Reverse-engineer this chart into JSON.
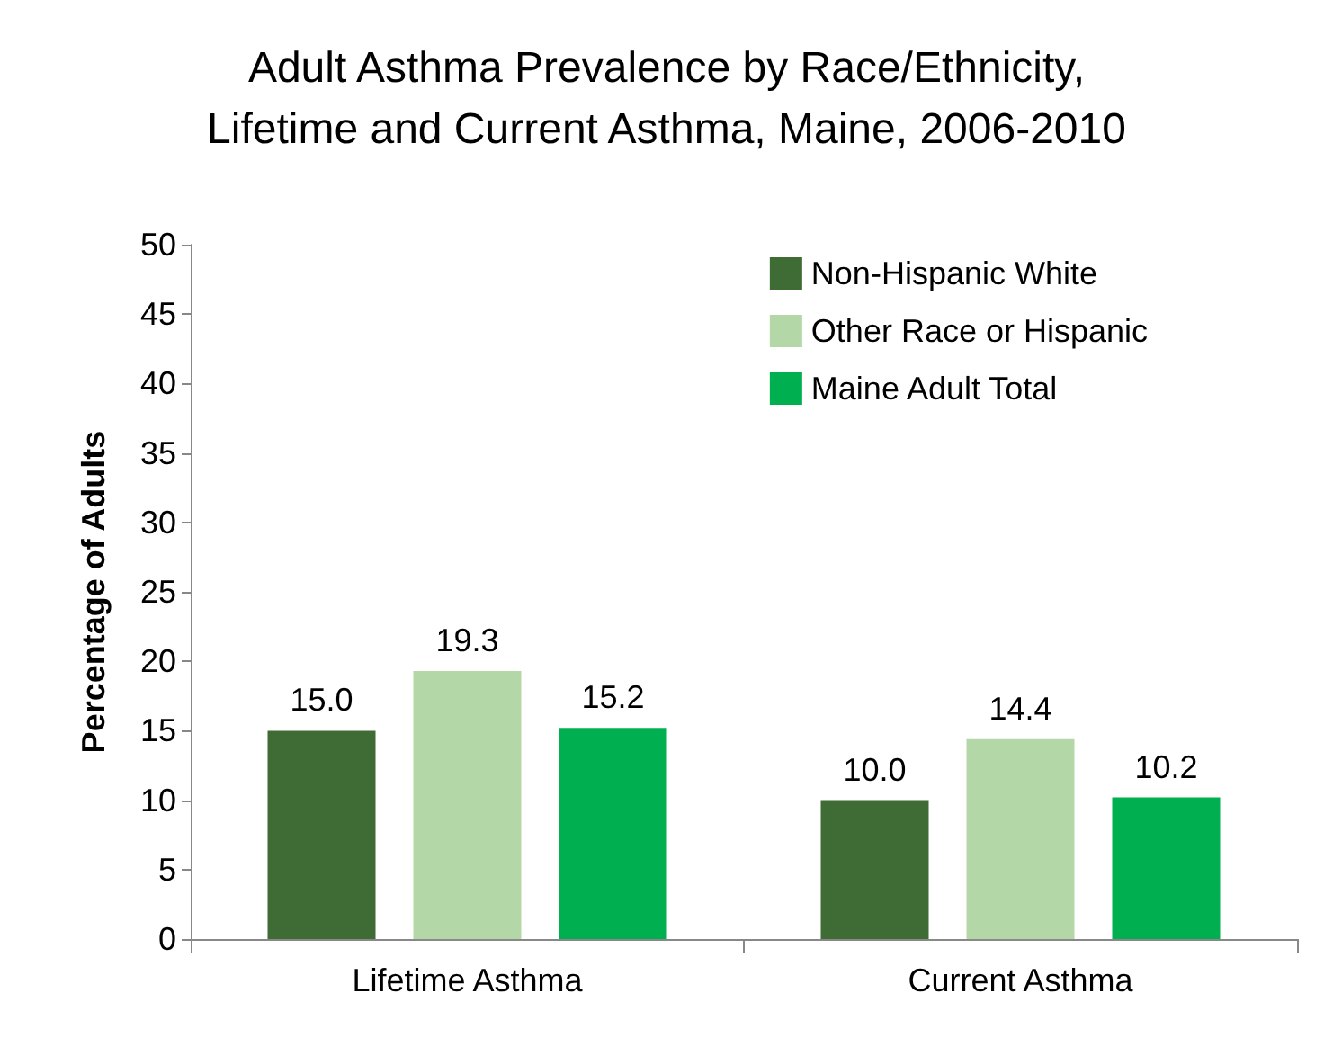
{
  "chart_data": {
    "type": "bar",
    "title": "Adult Asthma Prevalence by Race/Ethnicity,\nLifetime and Current Asthma, Maine, 2006-2010",
    "ylabel": "Percentage of Adults",
    "categories": [
      "Lifetime Asthma",
      "Current Asthma"
    ],
    "series": [
      {
        "name": "Non-Hispanic White",
        "color": "#3f6b35",
        "values": [
          15.0,
          10.0
        ],
        "value_labels": [
          "15.0",
          "10.0"
        ]
      },
      {
        "name": "Other Race or Hispanic",
        "color": "#b3d7a6",
        "values": [
          19.3,
          14.4
        ],
        "value_labels": [
          "19.3",
          "14.4"
        ]
      },
      {
        "name": "Maine Adult Total",
        "color": "#00b050",
        "values": [
          15.2,
          10.2
        ],
        "value_labels": [
          "15.2",
          "10.2"
        ]
      }
    ],
    "ylim": [
      0,
      50
    ],
    "yticks": [
      0,
      5,
      10,
      15,
      20,
      25,
      30,
      35,
      40,
      45,
      50
    ],
    "grid": false,
    "legend": "top right"
  }
}
